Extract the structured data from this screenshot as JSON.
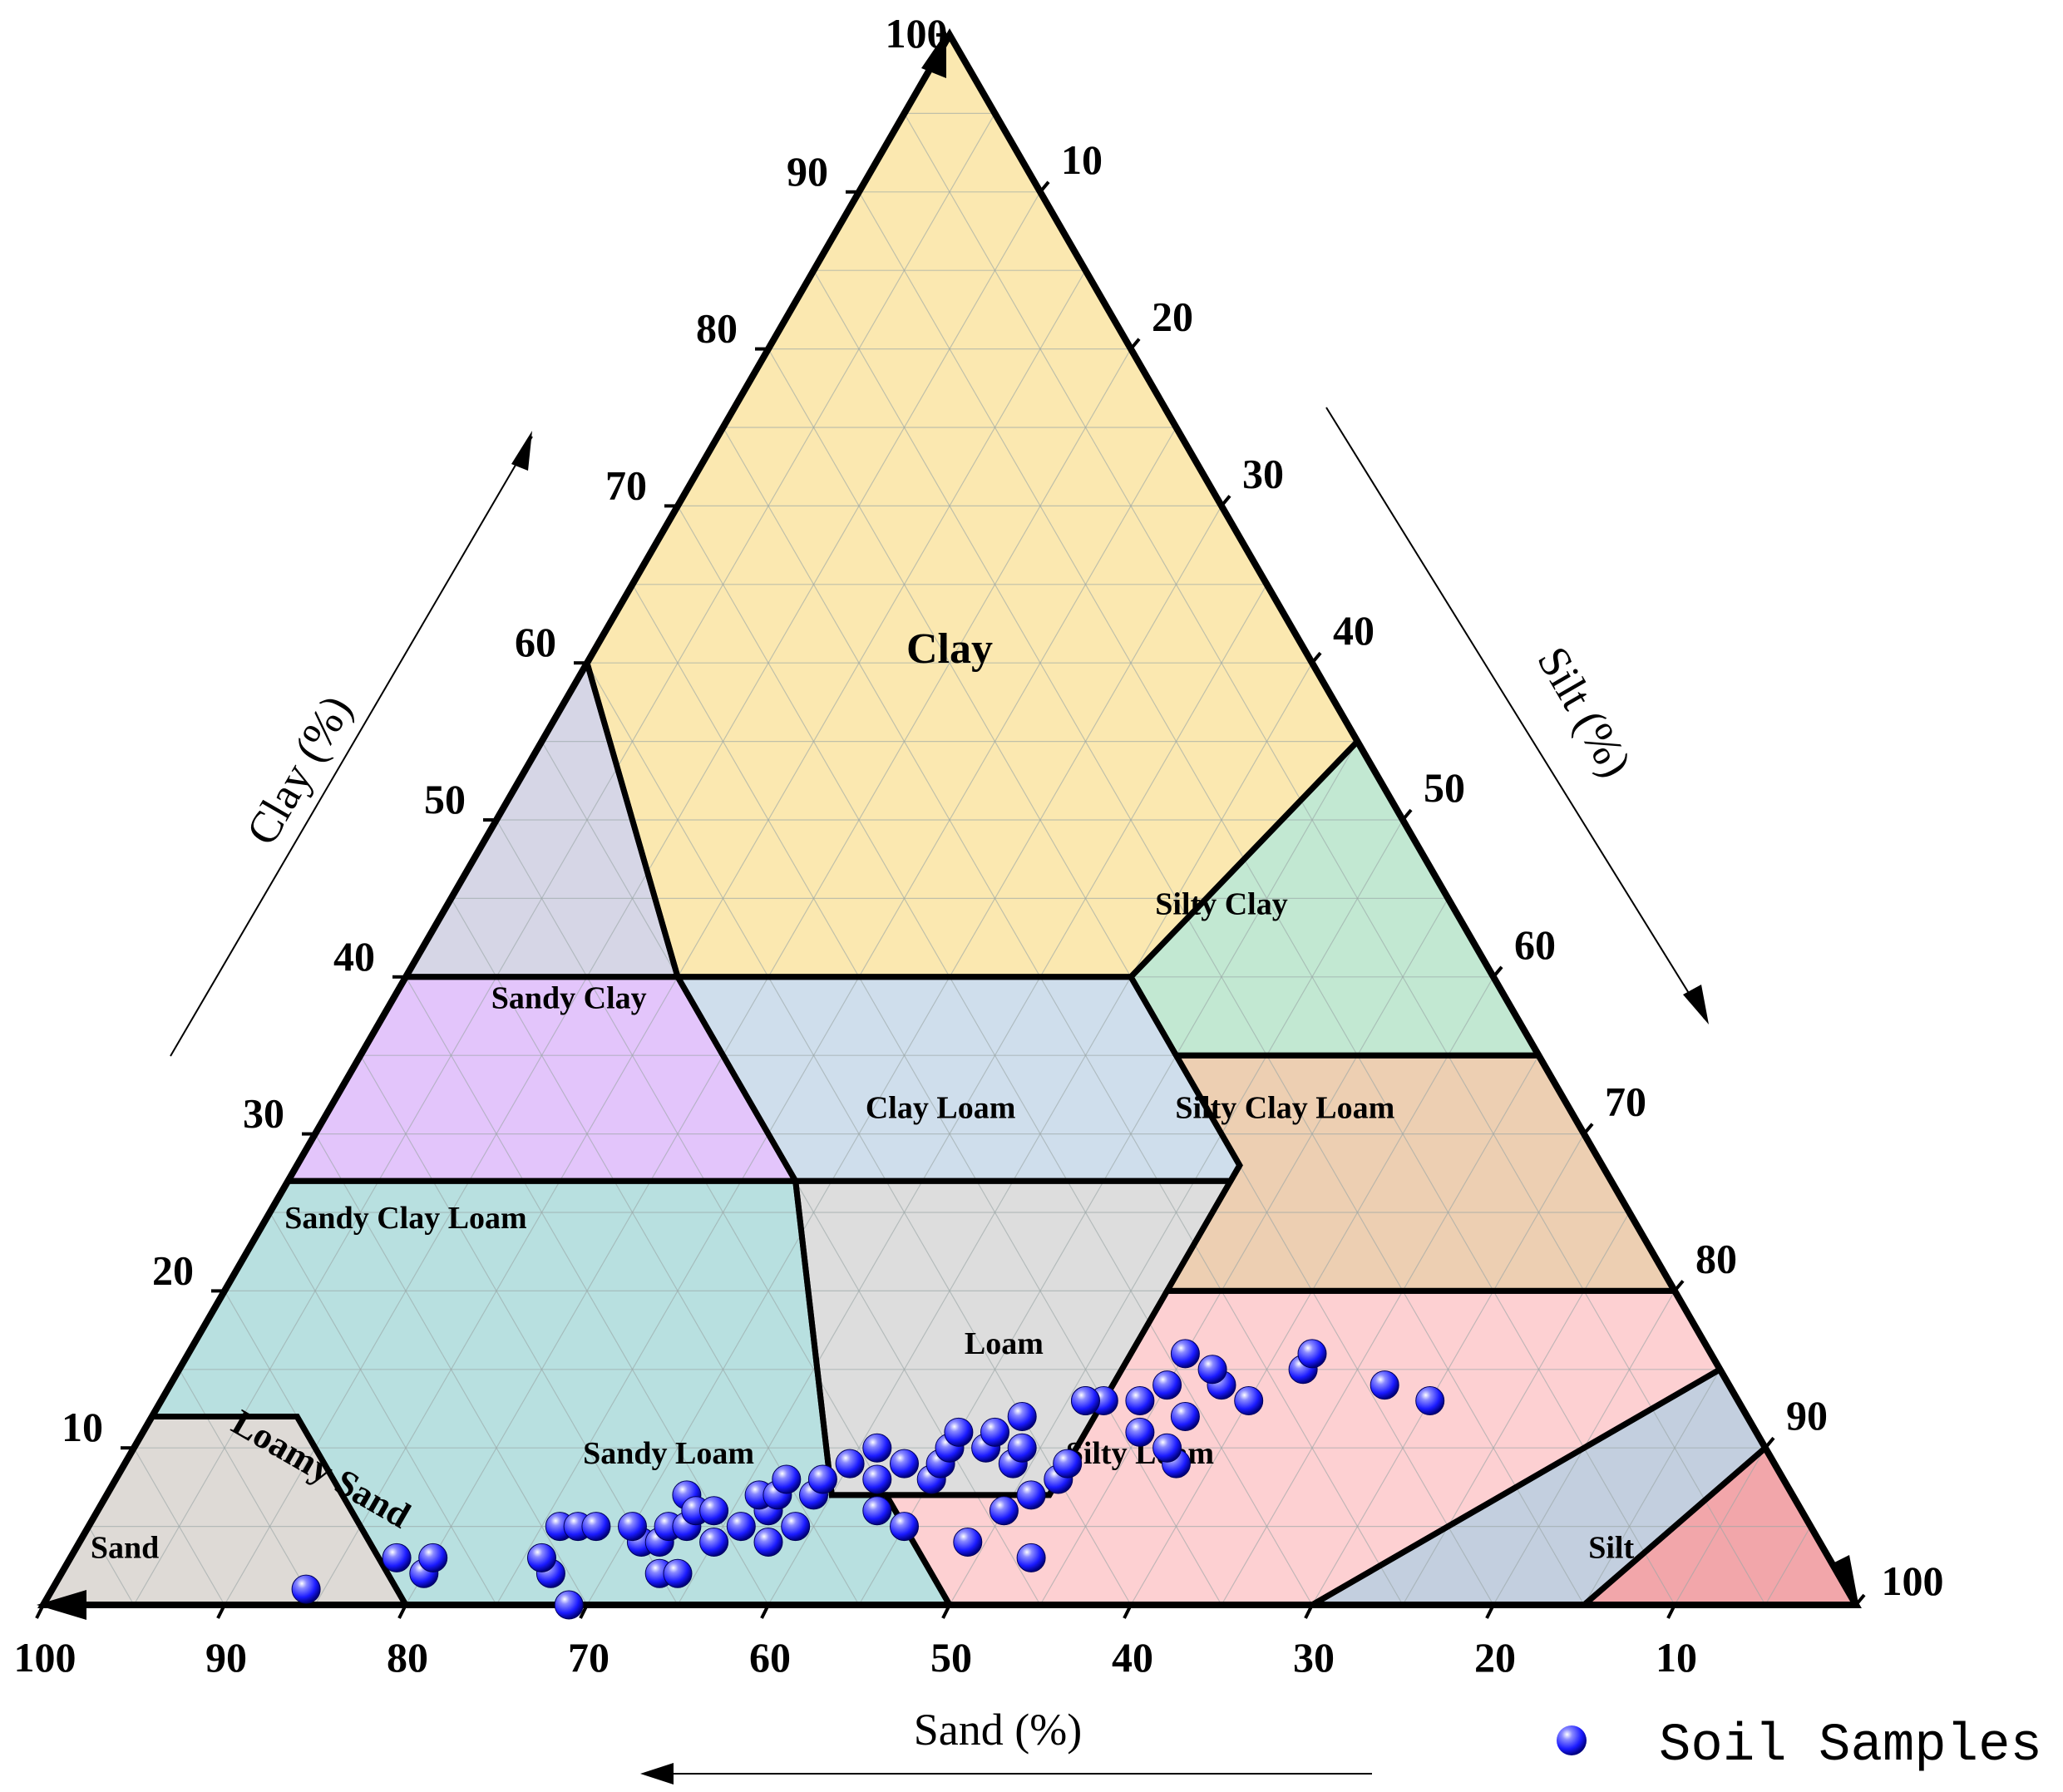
{
  "chart_data": {
    "type": "scatter",
    "subtype": "ternary-soil-texture",
    "axes": {
      "sand": {
        "label": "Sand (%)",
        "ticks": [
          "100",
          "90",
          "80",
          "70",
          "60",
          "50",
          "40",
          "30",
          "20",
          "10"
        ]
      },
      "clay": {
        "label": "Clay (%)",
        "ticks": [
          "10",
          "20",
          "30",
          "40",
          "50",
          "60",
          "70",
          "80",
          "90",
          "100"
        ]
      },
      "silt": {
        "label": "Silt (%)",
        "ticks": [
          "10",
          "20",
          "30",
          "40",
          "50",
          "60",
          "70",
          "80",
          "90",
          "100"
        ]
      },
      "range": [
        0,
        100
      ],
      "grid": true
    },
    "regions": [
      {
        "name": "Clay",
        "label": "Clay",
        "color": "#fbe8b0",
        "vertices": [
          [
            100,
            0
          ],
          [
            60,
            0
          ],
          [
            40,
            15
          ],
          [
            40,
            40
          ],
          [
            55,
            45
          ]
        ]
      },
      {
        "name": "Sandy Clay",
        "label": "Sandy Clay",
        "color": "#c2e8d2",
        "vertices": [
          [
            55,
            45
          ],
          [
            35,
            45
          ],
          [
            35,
            65
          ],
          [
            40,
            45
          ]
        ]
      },
      {
        "name": "Sandy Clay Loam",
        "label": "Sandy Clay Loam",
        "color": "#edcfb2",
        "vertices": [
          [
            35,
            65
          ],
          [
            35,
            45
          ],
          [
            28,
            45
          ],
          [
            20,
            52
          ],
          [
            20,
            80
          ],
          [
            28,
            72
          ]
        ]
      },
      {
        "name": "Clay Loam",
        "label": "Clay Loam",
        "color": "#cfdeec",
        "vertices": [
          [
            40,
            45
          ],
          [
            40,
            20
          ],
          [
            27,
            20
          ],
          [
            27,
            45
          ]
        ]
      },
      {
        "name": "Silty Clay",
        "label": "Silty Clay",
        "color": "#d6d6e6",
        "vertices": [
          [
            60,
            0
          ],
          [
            40,
            0
          ],
          [
            40,
            20
          ]
        ]
      },
      {
        "name": "Silty Clay Loam",
        "label": "Silty Clay Loam",
        "color": "#e3c5fb",
        "vertices": [
          [
            40,
            20
          ],
          [
            40,
            0
          ],
          [
            27,
            0
          ],
          [
            27,
            20
          ]
        ]
      },
      {
        "name": "Loam",
        "label": "Loam",
        "color": "#dddddd",
        "vertices": [
          [
            27,
            45
          ],
          [
            27,
            23
          ],
          [
            7,
            43
          ],
          [
            7,
            52
          ],
          [
            20,
            52
          ],
          [
            28,
            45
          ]
        ]
      },
      {
        "name": "Sandy Loam",
        "label": "Sandy Loam",
        "color": "#fdd0d2",
        "vertices": [
          [
            20,
            80
          ],
          [
            20,
            52
          ],
          [
            7,
            52
          ],
          [
            7,
            43
          ],
          [
            5,
            45
          ],
          [
            0,
            50
          ],
          [
            0,
            70
          ],
          [
            15,
            85
          ]
        ]
      },
      {
        "name": "Loamy Sand",
        "label": "Loamy Sand",
        "color": "#c3cfdf",
        "vertices": [
          [
            15,
            85
          ],
          [
            0,
            70
          ],
          [
            0,
            85
          ],
          [
            10,
            90
          ]
        ]
      },
      {
        "name": "Sand",
        "label": "Sand",
        "color": "#f2a6aa",
        "vertices": [
          [
            10,
            90
          ],
          [
            0,
            85
          ],
          [
            0,
            100
          ]
        ]
      },
      {
        "name": "Silt Loam",
        "label": "Silty Loam",
        "color": "#b8e0e0",
        "vertices": [
          [
            27,
            50
          ],
          [
            27,
            0
          ],
          [
            12,
            0
          ],
          [
            12,
            8
          ],
          [
            0,
            8
          ],
          [
            0,
            50
          ],
          [
            7,
            43
          ],
          [
            7,
            50
          ]
        ]
      },
      {
        "name": "Silt",
        "label": "Silt",
        "color": "#dedad6",
        "vertices": [
          [
            12,
            8
          ],
          [
            12,
            0
          ],
          [
            0,
            0
          ],
          [
            0,
            8
          ]
        ]
      }
    ],
    "series": [
      {
        "name": "Soil Samples",
        "color": "#1a1aff",
        "points": [
          [
            1,
            85
          ],
          [
            3,
            79
          ],
          [
            2,
            78
          ],
          [
            3,
            77
          ],
          [
            2,
            71
          ],
          [
            3,
            71
          ],
          [
            0,
            71
          ],
          [
            5,
            69
          ],
          [
            5,
            68
          ],
          [
            5,
            67
          ],
          [
            4,
            65
          ],
          [
            2,
            65
          ],
          [
            5,
            65
          ],
          [
            4,
            64
          ],
          [
            2,
            64
          ],
          [
            5,
            63
          ],
          [
            5,
            62
          ],
          [
            7,
            61
          ],
          [
            6,
            61
          ],
          [
            4,
            61
          ],
          [
            6,
            60
          ],
          [
            5,
            59
          ],
          [
            4,
            58
          ],
          [
            6,
            57
          ],
          [
            7,
            57
          ],
          [
            7,
            56
          ],
          [
            5,
            56
          ],
          [
            8,
            55
          ],
          [
            7,
            54
          ],
          [
            8,
            53
          ],
          [
            9,
            51
          ],
          [
            6,
            51
          ],
          [
            5,
            50
          ],
          [
            8,
            50
          ],
          [
            10,
            49
          ],
          [
            9,
            48
          ],
          [
            4,
            47
          ],
          [
            8,
            47
          ],
          [
            9,
            46
          ],
          [
            10,
            45
          ],
          [
            11,
            44
          ],
          [
            6,
            44
          ],
          [
            10,
            43
          ],
          [
            11,
            42
          ],
          [
            9,
            42
          ],
          [
            3,
            44
          ],
          [
            7,
            42
          ],
          [
            10,
            41
          ],
          [
            8,
            40
          ],
          [
            12,
            40
          ],
          [
            9,
            39
          ],
          [
            13,
            36
          ],
          [
            13,
            35
          ],
          [
            11,
            34
          ],
          [
            9,
            33
          ],
          [
            10,
            33
          ],
          [
            13,
            33
          ],
          [
            14,
            31
          ],
          [
            12,
            31
          ],
          [
            14,
            28
          ],
          [
            13,
            27
          ],
          [
            15,
            28
          ],
          [
            16,
            29
          ],
          [
            14,
            19
          ],
          [
            13,
            17
          ],
          [
            15,
            23
          ],
          [
            16,
            22
          ],
          [
            13,
            36
          ]
        ]
      }
    ],
    "legend": {
      "position": "bottom-right",
      "entries": [
        "Soil Samples"
      ]
    }
  }
}
